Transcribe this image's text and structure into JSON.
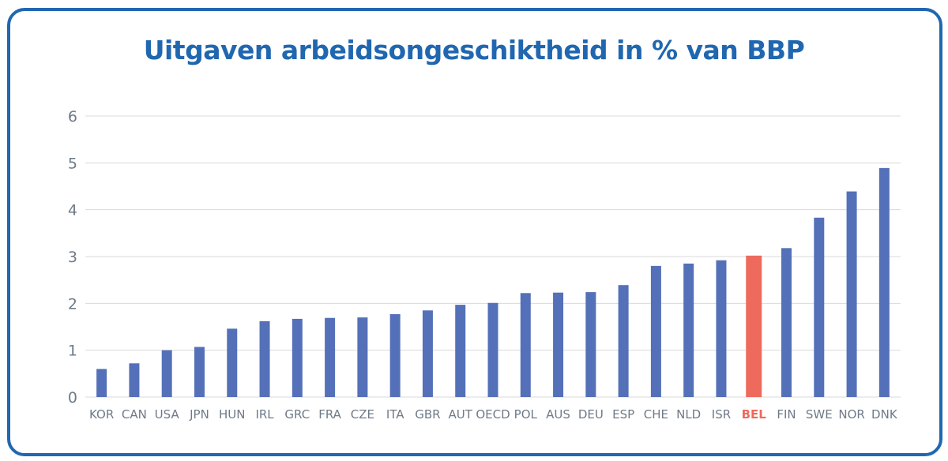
{
  "chart_data": {
    "type": "bar",
    "title": "Uitgaven arbeidsongeschiktheid in % van BBP",
    "xlabel": "",
    "ylabel": "",
    "categories": [
      "KOR",
      "CAN",
      "USA",
      "JPN",
      "HUN",
      "IRL",
      "GRC",
      "FRA",
      "CZE",
      "ITA",
      "GBR",
      "AUT",
      "OECD",
      "POL",
      "AUS",
      "DEU",
      "ESP",
      "CHE",
      "NLD",
      "ISR",
      "BEL",
      "FIN",
      "SWE",
      "NOR",
      "DNK"
    ],
    "values": [
      0.6,
      0.72,
      1.0,
      1.07,
      1.46,
      1.62,
      1.67,
      1.69,
      1.7,
      1.77,
      1.85,
      1.97,
      2.01,
      2.22,
      2.23,
      2.24,
      2.39,
      2.8,
      2.85,
      2.92,
      3.02,
      3.18,
      3.83,
      4.39,
      4.89
    ],
    "highlight": "BEL",
    "ylim": [
      0,
      6
    ],
    "yticks": [
      0,
      1,
      2,
      3,
      4,
      5,
      6
    ],
    "grid": true,
    "legend": "none",
    "colors": {
      "bar": "#5470b8",
      "highlight": "#ee6a5c",
      "title": "#2067b0",
      "frame": "#2067b0",
      "grid": "#d9d9d9",
      "axis_text": "#6e7a87"
    }
  }
}
